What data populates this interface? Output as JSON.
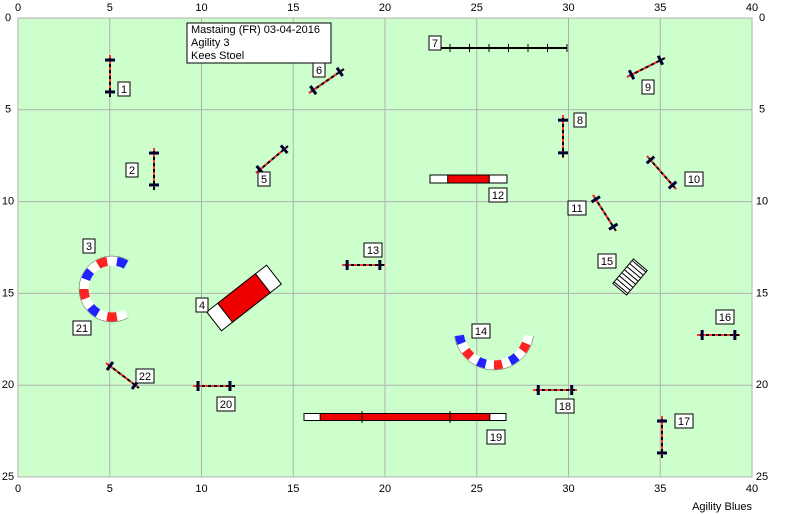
{
  "header": {
    "lines": [
      "Mastaing (FR) 03-04-2016",
      "Agility 3",
      "Kees Stoel"
    ]
  },
  "axes": {
    "x_ticks": [
      0,
      5,
      10,
      15,
      20,
      25,
      30,
      35,
      40
    ],
    "y_ticks": [
      0,
      5,
      10,
      15,
      20,
      25
    ]
  },
  "obstacles": [
    {
      "label": "1"
    },
    {
      "label": "2"
    },
    {
      "label": "3"
    },
    {
      "label": "4"
    },
    {
      "label": "5"
    },
    {
      "label": "6"
    },
    {
      "label": "7"
    },
    {
      "label": "8"
    },
    {
      "label": "9"
    },
    {
      "label": "10"
    },
    {
      "label": "11"
    },
    {
      "label": "12"
    },
    {
      "label": "13"
    },
    {
      "label": "14"
    },
    {
      "label": "15"
    },
    {
      "label": "16"
    },
    {
      "label": "17"
    },
    {
      "label": "18"
    },
    {
      "label": "19"
    },
    {
      "label": "20"
    },
    {
      "label": "21"
    },
    {
      "label": "22"
    }
  ],
  "footer": "Agility Blues"
}
